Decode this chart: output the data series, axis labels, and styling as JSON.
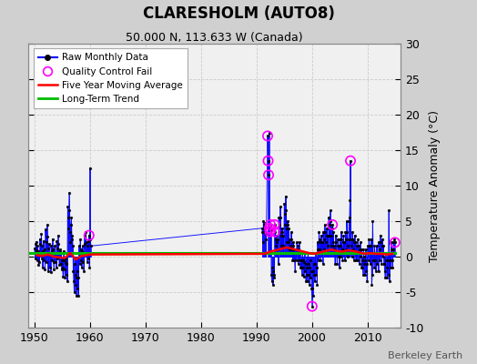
{
  "title": "CLARESHOLM (AUTO8)",
  "subtitle": "50.000 N, 113.633 W (Canada)",
  "ylabel": "Temperature Anomaly (°C)",
  "xlabel_note": "Berkeley Earth",
  "ylim": [
    -10,
    30
  ],
  "yticks": [
    -10,
    -5,
    0,
    5,
    10,
    15,
    20,
    25,
    30
  ],
  "xlim": [
    1949,
    2016
  ],
  "xticks": [
    1950,
    1960,
    1970,
    1980,
    1990,
    2000,
    2010
  ],
  "fig_bg": "#d0d0d0",
  "plot_bg": "#f0f0f0",
  "raw_color": "#0000ff",
  "moving_avg_color": "#ff0000",
  "trend_color": "#00bb00",
  "qc_fail_color": "#ff00ff",
  "raw_data": [
    [
      1950.0417,
      1.2
    ],
    [
      1950.125,
      0.5
    ],
    [
      1950.2083,
      -0.3
    ],
    [
      1950.2917,
      1.8
    ],
    [
      1950.375,
      2.1
    ],
    [
      1950.4583,
      0.9
    ],
    [
      1950.5417,
      -0.5
    ],
    [
      1950.625,
      1.5
    ],
    [
      1950.7083,
      0.8
    ],
    [
      1950.7917,
      -1.2
    ],
    [
      1950.875,
      0.3
    ],
    [
      1950.9583,
      -0.8
    ],
    [
      1951.0417,
      2.5
    ],
    [
      1951.125,
      1.8
    ],
    [
      1951.2083,
      0.5
    ],
    [
      1951.2917,
      3.2
    ],
    [
      1951.375,
      1.5
    ],
    [
      1951.4583,
      -0.2
    ],
    [
      1951.5417,
      -1.5
    ],
    [
      1951.625,
      0.8
    ],
    [
      1951.7083,
      2.2
    ],
    [
      1951.7917,
      -0.5
    ],
    [
      1951.875,
      1.0
    ],
    [
      1951.9583,
      -1.8
    ],
    [
      1952.0417,
      3.8
    ],
    [
      1952.125,
      2.0
    ],
    [
      1952.2083,
      -0.8
    ],
    [
      1952.2917,
      4.5
    ],
    [
      1952.375,
      2.8
    ],
    [
      1952.4583,
      1.2
    ],
    [
      1952.5417,
      -2.0
    ],
    [
      1952.625,
      1.8
    ],
    [
      1952.7083,
      0.5
    ],
    [
      1952.7917,
      -1.5
    ],
    [
      1952.875,
      0.2
    ],
    [
      1952.9583,
      -2.2
    ],
    [
      1953.0417,
      1.5
    ],
    [
      1953.125,
      0.8
    ],
    [
      1953.2083,
      -0.5
    ],
    [
      1953.2917,
      2.5
    ],
    [
      1953.375,
      1.0
    ],
    [
      1953.4583,
      -0.8
    ],
    [
      1953.5417,
      -1.8
    ],
    [
      1953.625,
      0.5
    ],
    [
      1953.7083,
      1.5
    ],
    [
      1953.7917,
      -0.8
    ],
    [
      1953.875,
      0.5
    ],
    [
      1953.9583,
      -1.5
    ],
    [
      1954.0417,
      2.2
    ],
    [
      1954.125,
      1.2
    ],
    [
      1954.2083,
      -0.3
    ],
    [
      1954.2917,
      3.0
    ],
    [
      1954.375,
      1.8
    ],
    [
      1954.4583,
      0.5
    ],
    [
      1954.5417,
      -1.2
    ],
    [
      1954.625,
      1.0
    ],
    [
      1954.7083,
      0.8
    ],
    [
      1954.7917,
      -1.0
    ],
    [
      1954.875,
      0.5
    ],
    [
      1954.9583,
      -1.8
    ],
    [
      1955.0417,
      -0.5
    ],
    [
      1955.125,
      -1.5
    ],
    [
      1955.2083,
      -2.8
    ],
    [
      1955.2917,
      0.8
    ],
    [
      1955.375,
      -0.5
    ],
    [
      1955.4583,
      -1.8
    ],
    [
      1955.5417,
      -3.0
    ],
    [
      1955.625,
      -0.8
    ],
    [
      1955.7083,
      -0.2
    ],
    [
      1955.7917,
      -2.5
    ],
    [
      1955.875,
      -1.0
    ],
    [
      1955.9583,
      -3.5
    ],
    [
      1956.0417,
      7.0
    ],
    [
      1956.125,
      5.5
    ],
    [
      1956.2083,
      4.0
    ],
    [
      1956.2917,
      9.0
    ],
    [
      1956.375,
      6.5
    ],
    [
      1956.4583,
      3.5
    ],
    [
      1956.5417,
      2.0
    ],
    [
      1956.625,
      4.5
    ],
    [
      1956.7083,
      5.5
    ],
    [
      1956.7917,
      2.5
    ],
    [
      1956.875,
      3.0
    ],
    [
      1956.9583,
      1.5
    ],
    [
      1957.0417,
      -2.0
    ],
    [
      1957.125,
      -3.5
    ],
    [
      1957.2083,
      -5.0
    ],
    [
      1957.2917,
      -1.0
    ],
    [
      1957.375,
      -2.5
    ],
    [
      1957.4583,
      -4.0
    ],
    [
      1957.5417,
      -5.5
    ],
    [
      1957.625,
      -3.0
    ],
    [
      1957.7083,
      -2.0
    ],
    [
      1957.7917,
      -4.5
    ],
    [
      1957.875,
      -3.0
    ],
    [
      1957.9583,
      -5.5
    ],
    [
      1958.0417,
      1.5
    ],
    [
      1958.125,
      0.5
    ],
    [
      1958.2083,
      -1.0
    ],
    [
      1958.2917,
      2.5
    ],
    [
      1958.375,
      1.0
    ],
    [
      1958.4583,
      -0.5
    ],
    [
      1958.5417,
      -1.5
    ],
    [
      1958.625,
      0.8
    ],
    [
      1958.7083,
      1.5
    ],
    [
      1958.7917,
      -0.8
    ],
    [
      1958.875,
      0.5
    ],
    [
      1958.9583,
      -2.0
    ],
    [
      1959.0417,
      3.0
    ],
    [
      1959.125,
      1.8
    ],
    [
      1959.2083,
      0.5
    ],
    [
      1959.2917,
      3.5
    ],
    [
      1959.375,
      2.0
    ],
    [
      1959.4583,
      0.5
    ],
    [
      1959.5417,
      -0.8
    ],
    [
      1959.625,
      1.5
    ],
    [
      1959.7083,
      2.2
    ],
    [
      1959.7917,
      -0.2
    ],
    [
      1959.875,
      3.0
    ],
    [
      1959.9583,
      -1.5
    ],
    [
      1960.0417,
      12.5
    ],
    [
      1960.125,
      2.5
    ],
    [
      1960.2083,
      1.5
    ],
    [
      1991.0417,
      4.0
    ],
    [
      1991.125,
      3.5
    ],
    [
      1991.2083,
      2.0
    ],
    [
      1991.2917,
      5.0
    ],
    [
      1991.375,
      4.5
    ],
    [
      1991.4583,
      4.0
    ],
    [
      1991.5417,
      3.5
    ],
    [
      1991.625,
      4.8
    ],
    [
      1991.7083,
      3.2
    ],
    [
      1991.7917,
      2.5
    ],
    [
      1992.0417,
      17.0
    ],
    [
      1992.125,
      13.5
    ],
    [
      1992.2083,
      11.5
    ],
    [
      1992.2917,
      17.5
    ],
    [
      1992.375,
      4.0
    ],
    [
      1992.4583,
      3.5
    ],
    [
      1992.5417,
      4.5
    ],
    [
      1992.625,
      3.8
    ],
    [
      1992.7083,
      -2.5
    ],
    [
      1992.7917,
      -3.5
    ],
    [
      1992.875,
      -1.5
    ],
    [
      1992.9583,
      -4.0
    ],
    [
      1993.0417,
      -2.0
    ],
    [
      1993.125,
      -3.0
    ],
    [
      1993.2083,
      -2.5
    ],
    [
      1993.2917,
      4.5
    ],
    [
      1993.375,
      3.5
    ],
    [
      1993.4583,
      2.5
    ],
    [
      1993.5417,
      1.5
    ],
    [
      1993.625,
      3.0
    ],
    [
      1993.7083,
      2.0
    ],
    [
      1993.7917,
      1.0
    ],
    [
      1993.875,
      2.5
    ],
    [
      1993.9583,
      -1.0
    ],
    [
      1994.0417,
      5.5
    ],
    [
      1994.125,
      4.5
    ],
    [
      1994.2083,
      3.5
    ],
    [
      1994.2917,
      7.0
    ],
    [
      1994.375,
      5.5
    ],
    [
      1994.4583,
      3.0
    ],
    [
      1994.5417,
      1.5
    ],
    [
      1994.625,
      4.0
    ],
    [
      1994.7083,
      3.5
    ],
    [
      1994.7917,
      1.5
    ],
    [
      1994.875,
      3.0
    ],
    [
      1994.9583,
      0.5
    ],
    [
      1995.0417,
      7.5
    ],
    [
      1995.125,
      6.0
    ],
    [
      1995.2083,
      4.5
    ],
    [
      1995.2917,
      8.5
    ],
    [
      1995.375,
      6.5
    ],
    [
      1995.4583,
      4.0
    ],
    [
      1995.5417,
      2.0
    ],
    [
      1995.625,
      5.0
    ],
    [
      1995.7083,
      4.5
    ],
    [
      1995.7917,
      2.0
    ],
    [
      1995.875,
      4.0
    ],
    [
      1995.9583,
      1.0
    ],
    [
      1996.0417,
      2.5
    ],
    [
      1996.125,
      1.5
    ],
    [
      1996.2083,
      0.5
    ],
    [
      1996.2917,
      3.5
    ],
    [
      1996.375,
      2.5
    ],
    [
      1996.4583,
      1.0
    ],
    [
      1996.5417,
      -0.5
    ],
    [
      1996.625,
      2.0
    ],
    [
      1996.7083,
      1.5
    ],
    [
      1996.7917,
      -0.5
    ],
    [
      1996.875,
      1.0
    ],
    [
      1996.9583,
      -2.0
    ],
    [
      1997.0417,
      1.0
    ],
    [
      1997.125,
      0.5
    ],
    [
      1997.2083,
      -0.5
    ],
    [
      1997.2917,
      2.0
    ],
    [
      1997.375,
      1.5
    ],
    [
      1997.4583,
      0.5
    ],
    [
      1997.5417,
      -1.0
    ],
    [
      1997.625,
      1.0
    ],
    [
      1997.7083,
      2.0
    ],
    [
      1997.7917,
      -0.5
    ],
    [
      1997.875,
      0.5
    ],
    [
      1997.9583,
      -1.5
    ],
    [
      1998.0417,
      -0.5
    ],
    [
      1998.125,
      -1.5
    ],
    [
      1998.2083,
      -2.5
    ],
    [
      1998.2917,
      0.5
    ],
    [
      1998.375,
      -0.5
    ],
    [
      1998.4583,
      -1.5
    ],
    [
      1998.5417,
      -2.8
    ],
    [
      1998.625,
      -0.8
    ],
    [
      1998.7083,
      0.5
    ],
    [
      1998.7917,
      -2.0
    ],
    [
      1998.875,
      -1.0
    ],
    [
      1998.9583,
      -3.5
    ],
    [
      1999.0417,
      -1.5
    ],
    [
      1999.125,
      -2.5
    ],
    [
      1999.2083,
      -3.5
    ],
    [
      1999.2917,
      0.5
    ],
    [
      1999.375,
      -1.0
    ],
    [
      1999.4583,
      -2.5
    ],
    [
      1999.5417,
      -4.0
    ],
    [
      1999.625,
      -1.5
    ],
    [
      1999.7083,
      -0.5
    ],
    [
      1999.7917,
      -3.0
    ],
    [
      1999.875,
      -2.0
    ],
    [
      1999.9583,
      -4.5
    ],
    [
      2000.0417,
      -7.0
    ],
    [
      2000.125,
      -4.5
    ],
    [
      2000.2083,
      -5.5
    ],
    [
      2000.2917,
      -2.0
    ],
    [
      2000.375,
      -1.0
    ],
    [
      2000.4583,
      -2.5
    ],
    [
      2000.5417,
      -3.5
    ],
    [
      2000.625,
      -1.0
    ],
    [
      2000.7083,
      0.5
    ],
    [
      2000.7917,
      -2.5
    ],
    [
      2000.875,
      -1.5
    ],
    [
      2000.9583,
      -4.0
    ],
    [
      2001.0417,
      2.0
    ],
    [
      2001.125,
      1.0
    ],
    [
      2001.2083,
      -0.5
    ],
    [
      2001.2917,
      3.5
    ],
    [
      2001.375,
      2.5
    ],
    [
      2001.4583,
      1.0
    ],
    [
      2001.5417,
      -0.5
    ],
    [
      2001.625,
      2.0
    ],
    [
      2001.7083,
      3.0
    ],
    [
      2001.7917,
      0.5
    ],
    [
      2001.875,
      2.0
    ],
    [
      2001.9583,
      -1.0
    ],
    [
      2002.0417,
      3.5
    ],
    [
      2002.125,
      2.5
    ],
    [
      2002.2083,
      1.0
    ],
    [
      2002.2917,
      4.5
    ],
    [
      2002.375,
      3.5
    ],
    [
      2002.4583,
      2.0
    ],
    [
      2002.5417,
      0.5
    ],
    [
      2002.625,
      3.0
    ],
    [
      2002.7083,
      4.0
    ],
    [
      2002.7917,
      1.5
    ],
    [
      2002.875,
      3.0
    ],
    [
      2002.9583,
      0.5
    ],
    [
      2003.0417,
      5.5
    ],
    [
      2003.125,
      4.5
    ],
    [
      2003.2083,
      3.0
    ],
    [
      2003.2917,
      6.5
    ],
    [
      2003.375,
      5.0
    ],
    [
      2003.4583,
      3.0
    ],
    [
      2003.5417,
      1.5
    ],
    [
      2003.625,
      4.0
    ],
    [
      2003.7083,
      4.5
    ],
    [
      2003.7917,
      2.0
    ],
    [
      2003.875,
      3.5
    ],
    [
      2003.9583,
      1.0
    ],
    [
      2004.0417,
      1.5
    ],
    [
      2004.125,
      0.5
    ],
    [
      2004.2083,
      -1.0
    ],
    [
      2004.2917,
      3.0
    ],
    [
      2004.375,
      2.0
    ],
    [
      2004.4583,
      0.5
    ],
    [
      2004.5417,
      -1.0
    ],
    [
      2004.625,
      1.5
    ],
    [
      2004.7083,
      2.5
    ],
    [
      2004.7917,
      0.0
    ],
    [
      2004.875,
      1.5
    ],
    [
      2004.9583,
      -1.5
    ],
    [
      2005.0417,
      2.5
    ],
    [
      2005.125,
      1.5
    ],
    [
      2005.2083,
      0.0
    ],
    [
      2005.2917,
      3.5
    ],
    [
      2005.375,
      2.5
    ],
    [
      2005.4583,
      1.0
    ],
    [
      2005.5417,
      -0.5
    ],
    [
      2005.625,
      2.0
    ],
    [
      2005.7083,
      3.0
    ],
    [
      2005.7917,
      0.5
    ],
    [
      2005.875,
      2.0
    ],
    [
      2005.9583,
      -0.5
    ],
    [
      2006.0417,
      3.5
    ],
    [
      2006.125,
      2.5
    ],
    [
      2006.2083,
      1.0
    ],
    [
      2006.2917,
      5.0
    ],
    [
      2006.375,
      3.5
    ],
    [
      2006.4583,
      1.5
    ],
    [
      2006.5417,
      0.0
    ],
    [
      2006.625,
      2.5
    ],
    [
      2006.7083,
      5.0
    ],
    [
      2006.7917,
      5.5
    ],
    [
      2006.875,
      8.0
    ],
    [
      2006.9583,
      13.5
    ],
    [
      2007.0417,
      2.5
    ],
    [
      2007.125,
      1.5
    ],
    [
      2007.2083,
      0.0
    ],
    [
      2007.2917,
      3.5
    ],
    [
      2007.375,
      2.5
    ],
    [
      2007.4583,
      1.0
    ],
    [
      2007.5417,
      -0.5
    ],
    [
      2007.625,
      2.0
    ],
    [
      2007.7083,
      3.0
    ],
    [
      2007.7917,
      0.5
    ],
    [
      2007.875,
      2.0
    ],
    [
      2007.9583,
      -0.5
    ],
    [
      2008.0417,
      1.5
    ],
    [
      2008.125,
      0.5
    ],
    [
      2008.2083,
      -0.5
    ],
    [
      2008.2917,
      2.5
    ],
    [
      2008.375,
      1.5
    ],
    [
      2008.4583,
      0.5
    ],
    [
      2008.5417,
      -1.0
    ],
    [
      2008.625,
      1.0
    ],
    [
      2008.7083,
      2.0
    ],
    [
      2008.7917,
      0.0
    ],
    [
      2008.875,
      1.0
    ],
    [
      2008.9583,
      -1.5
    ],
    [
      2009.0417,
      -0.5
    ],
    [
      2009.125,
      -1.5
    ],
    [
      2009.2083,
      -2.5
    ],
    [
      2009.2917,
      1.0
    ],
    [
      2009.375,
      0.0
    ],
    [
      2009.4583,
      -1.0
    ],
    [
      2009.5417,
      -2.5
    ],
    [
      2009.625,
      -0.5
    ],
    [
      2009.7083,
      1.0
    ],
    [
      2009.7917,
      -2.0
    ],
    [
      2009.875,
      -1.0
    ],
    [
      2009.9583,
      -3.5
    ],
    [
      2010.0417,
      1.5
    ],
    [
      2010.125,
      0.5
    ],
    [
      2010.2083,
      -0.5
    ],
    [
      2010.2917,
      2.5
    ],
    [
      2010.375,
      1.5
    ],
    [
      2010.4583,
      0.5
    ],
    [
      2010.5417,
      -1.0
    ],
    [
      2010.625,
      1.5
    ],
    [
      2010.7083,
      2.5
    ],
    [
      2010.7917,
      -4.0
    ],
    [
      2010.875,
      -2.5
    ],
    [
      2010.9583,
      5.0
    ],
    [
      2011.0417,
      0.5
    ],
    [
      2011.125,
      -0.5
    ],
    [
      2011.2083,
      -1.5
    ],
    [
      2011.2917,
      1.5
    ],
    [
      2011.375,
      0.5
    ],
    [
      2011.4583,
      -0.5
    ],
    [
      2011.5417,
      -2.0
    ],
    [
      2011.625,
      0.5
    ],
    [
      2011.7083,
      1.5
    ],
    [
      2011.7917,
      -1.0
    ],
    [
      2011.875,
      0.5
    ],
    [
      2011.9583,
      -2.0
    ],
    [
      2012.0417,
      2.0
    ],
    [
      2012.125,
      1.0
    ],
    [
      2012.2083,
      -0.5
    ],
    [
      2012.2917,
      3.0
    ],
    [
      2012.375,
      2.0
    ],
    [
      2012.4583,
      0.5
    ],
    [
      2012.5417,
      -1.0
    ],
    [
      2012.625,
      1.5
    ],
    [
      2012.7083,
      2.5
    ],
    [
      2012.7917,
      0.0
    ],
    [
      2012.875,
      1.5
    ],
    [
      2012.9583,
      -1.0
    ],
    [
      2013.0417,
      -1.0
    ],
    [
      2013.125,
      -2.0
    ],
    [
      2013.2083,
      -3.0
    ],
    [
      2013.2917,
      0.5
    ],
    [
      2013.375,
      -0.5
    ],
    [
      2013.4583,
      -1.5
    ],
    [
      2013.5417,
      -3.0
    ],
    [
      2013.625,
      -0.5
    ],
    [
      2013.7083,
      0.5
    ],
    [
      2013.7917,
      -2.5
    ],
    [
      2013.875,
      6.5
    ],
    [
      2013.9583,
      -3.5
    ],
    [
      2014.0417,
      0.5
    ],
    [
      2014.125,
      -0.5
    ],
    [
      2014.2083,
      -1.5
    ],
    [
      2014.2917,
      2.0
    ],
    [
      2014.375,
      1.0
    ],
    [
      2014.4583,
      -0.5
    ],
    [
      2014.5417,
      -1.5
    ],
    [
      2014.625,
      1.0
    ],
    [
      2014.7083,
      2.0
    ],
    [
      2014.7917,
      0.5
    ],
    [
      2014.875,
      2.5
    ],
    [
      2014.9583,
      2.0
    ]
  ],
  "qc_fail_points": [
    [
      1959.875,
      3.0
    ],
    [
      1992.0417,
      17.0
    ],
    [
      1992.125,
      13.5
    ],
    [
      1992.2083,
      11.5
    ],
    [
      1992.375,
      4.0
    ],
    [
      1992.4583,
      3.5
    ],
    [
      1992.5417,
      4.5
    ],
    [
      1992.625,
      3.8
    ],
    [
      1993.2917,
      4.5
    ],
    [
      1993.375,
      3.5
    ],
    [
      2000.0417,
      -7.0
    ],
    [
      2003.7083,
      4.5
    ],
    [
      2006.9583,
      13.5
    ],
    [
      2014.9583,
      2.0
    ]
  ],
  "moving_avg": [
    [
      1950.5,
      0.2
    ],
    [
      1951.5,
      0.1
    ],
    [
      1952.5,
      0.3
    ],
    [
      1953.5,
      0.0
    ],
    [
      1954.5,
      -0.1
    ],
    [
      1955.5,
      -0.2
    ],
    [
      1956.5,
      0.5
    ],
    [
      1957.5,
      -0.4
    ],
    [
      1958.5,
      0.1
    ],
    [
      1959.5,
      0.2
    ],
    [
      1960.0,
      0.3
    ],
    [
      1991.5,
      0.4
    ],
    [
      1992.5,
      0.7
    ],
    [
      1993.5,
      0.9
    ],
    [
      1994.5,
      1.1
    ],
    [
      1995.5,
      1.3
    ],
    [
      1996.5,
      1.1
    ],
    [
      1997.5,
      0.9
    ],
    [
      1998.5,
      0.7
    ],
    [
      1999.5,
      0.5
    ],
    [
      2000.5,
      0.4
    ],
    [
      2001.5,
      0.6
    ],
    [
      2002.5,
      0.8
    ],
    [
      2003.5,
      1.0
    ],
    [
      2004.5,
      0.8
    ],
    [
      2005.5,
      0.7
    ],
    [
      2006.5,
      0.9
    ],
    [
      2007.5,
      0.8
    ],
    [
      2008.5,
      0.6
    ],
    [
      2009.5,
      0.4
    ],
    [
      2010.5,
      0.5
    ],
    [
      2011.5,
      0.4
    ],
    [
      2012.5,
      0.4
    ],
    [
      2013.5,
      0.3
    ],
    [
      2014.5,
      0.4
    ]
  ],
  "trend_x": [
    1949,
    2015
  ],
  "trend_y": [
    0.5,
    0.5
  ]
}
